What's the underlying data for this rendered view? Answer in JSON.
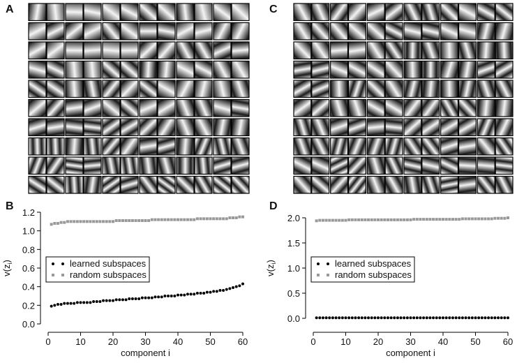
{
  "image_panels": [
    {
      "label": "A"
    },
    {
      "label": "C"
    }
  ],
  "chart_data": [
    {
      "type": "scatter",
      "panel_label": "B",
      "xlabel": "component i",
      "ylabel": [
        "v(z",
        "i",
        ")"
      ],
      "x": [
        1,
        2,
        3,
        4,
        5,
        6,
        7,
        8,
        9,
        10,
        11,
        12,
        13,
        14,
        15,
        16,
        17,
        18,
        19,
        20,
        21,
        22,
        23,
        24,
        25,
        26,
        27,
        28,
        29,
        30,
        31,
        32,
        33,
        34,
        35,
        36,
        37,
        38,
        39,
        40,
        41,
        42,
        43,
        44,
        45,
        46,
        47,
        48,
        49,
        50,
        51,
        52,
        53,
        54,
        55,
        56,
        57,
        58,
        59,
        60
      ],
      "series": [
        {
          "name": "learned subspaces",
          "color": "#000000",
          "marker": "circle",
          "values": [
            0.19,
            0.2,
            0.21,
            0.21,
            0.22,
            0.22,
            0.22,
            0.22,
            0.23,
            0.23,
            0.23,
            0.23,
            0.23,
            0.24,
            0.24,
            0.24,
            0.25,
            0.25,
            0.25,
            0.25,
            0.26,
            0.26,
            0.26,
            0.26,
            0.27,
            0.27,
            0.27,
            0.27,
            0.28,
            0.28,
            0.28,
            0.28,
            0.29,
            0.29,
            0.29,
            0.3,
            0.3,
            0.3,
            0.3,
            0.31,
            0.31,
            0.31,
            0.32,
            0.32,
            0.32,
            0.33,
            0.33,
            0.33,
            0.34,
            0.34,
            0.35,
            0.35,
            0.36,
            0.36,
            0.37,
            0.38,
            0.39,
            0.4,
            0.41,
            0.43
          ]
        },
        {
          "name": "random subspaces",
          "color": "#999999",
          "marker": "square",
          "values": [
            1.07,
            1.08,
            1.08,
            1.09,
            1.09,
            1.1,
            1.1,
            1.1,
            1.1,
            1.1,
            1.1,
            1.1,
            1.1,
            1.1,
            1.1,
            1.1,
            1.1,
            1.1,
            1.1,
            1.1,
            1.11,
            1.11,
            1.11,
            1.11,
            1.11,
            1.11,
            1.11,
            1.11,
            1.11,
            1.11,
            1.11,
            1.12,
            1.12,
            1.12,
            1.12,
            1.12,
            1.12,
            1.12,
            1.12,
            1.12,
            1.12,
            1.12,
            1.12,
            1.12,
            1.12,
            1.13,
            1.13,
            1.13,
            1.13,
            1.13,
            1.13,
            1.13,
            1.13,
            1.13,
            1.13,
            1.14,
            1.14,
            1.14,
            1.15,
            1.15
          ]
        }
      ],
      "xlim": [
        0,
        60
      ],
      "xticks": [
        0,
        10,
        20,
        30,
        40,
        50,
        60
      ],
      "ylim": [
        0,
        1.2
      ],
      "yticks": [
        {
          "value": 0,
          "label": "0.0"
        },
        0.2,
        0.4,
        0.6,
        0.8,
        {
          "value": 1,
          "label": "1.0"
        },
        1.2
      ],
      "legend": "center left"
    },
    {
      "type": "scatter",
      "panel_label": "D",
      "xlabel": "component i",
      "ylabel": [
        "v(z",
        "i",
        ")"
      ],
      "x": [
        1,
        2,
        3,
        4,
        5,
        6,
        7,
        8,
        9,
        10,
        11,
        12,
        13,
        14,
        15,
        16,
        17,
        18,
        19,
        20,
        21,
        22,
        23,
        24,
        25,
        26,
        27,
        28,
        29,
        30,
        31,
        32,
        33,
        34,
        35,
        36,
        37,
        38,
        39,
        40,
        41,
        42,
        43,
        44,
        45,
        46,
        47,
        48,
        49,
        50,
        51,
        52,
        53,
        54,
        55,
        56,
        57,
        58,
        59,
        60
      ],
      "series": [
        {
          "name": "learned subspaces",
          "color": "#000000",
          "marker": "circle",
          "values": [
            0.01,
            0.01,
            0.01,
            0.01,
            0.01,
            0.01,
            0.01,
            0.01,
            0.01,
            0.01,
            0.01,
            0.01,
            0.01,
            0.01,
            0.01,
            0.01,
            0.01,
            0.01,
            0.01,
            0.01,
            0.01,
            0.01,
            0.01,
            0.01,
            0.01,
            0.01,
            0.01,
            0.01,
            0.01,
            0.01,
            0.01,
            0.01,
            0.01,
            0.01,
            0.01,
            0.01,
            0.01,
            0.01,
            0.01,
            0.01,
            0.01,
            0.01,
            0.01,
            0.01,
            0.01,
            0.01,
            0.01,
            0.01,
            0.01,
            0.01,
            0.01,
            0.01,
            0.01,
            0.01,
            0.01,
            0.01,
            0.01,
            0.01,
            0.01,
            0.01
          ]
        },
        {
          "name": "random subspaces",
          "color": "#999999",
          "marker": "square",
          "values": [
            1.94,
            1.95,
            1.95,
            1.95,
            1.95,
            1.95,
            1.95,
            1.95,
            1.95,
            1.95,
            1.96,
            1.96,
            1.96,
            1.96,
            1.96,
            1.96,
            1.96,
            1.96,
            1.96,
            1.96,
            1.96,
            1.96,
            1.96,
            1.96,
            1.96,
            1.96,
            1.96,
            1.96,
            1.96,
            1.96,
            1.97,
            1.97,
            1.97,
            1.97,
            1.97,
            1.97,
            1.97,
            1.97,
            1.97,
            1.97,
            1.97,
            1.97,
            1.97,
            1.97,
            1.97,
            1.98,
            1.98,
            1.98,
            1.98,
            1.98,
            1.98,
            1.98,
            1.98,
            1.98,
            1.98,
            1.99,
            1.99,
            1.99,
            1.99,
            2.0
          ]
        }
      ],
      "xlim": [
        0,
        60
      ],
      "xticks": [
        0,
        10,
        20,
        30,
        40,
        50,
        60
      ],
      "ylim": [
        0,
        2
      ],
      "yticks": [
        {
          "value": 0,
          "label": "0.0"
        },
        0.5,
        {
          "value": 1,
          "label": "1.0"
        },
        1.5,
        {
          "value": 2,
          "label": "2.0"
        }
      ],
      "legend": "center left"
    }
  ]
}
